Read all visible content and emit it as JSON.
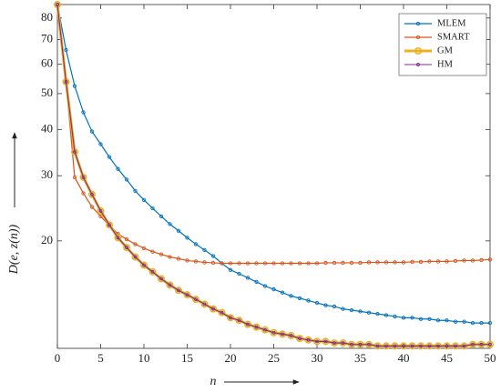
{
  "chart_data": {
    "type": "line",
    "xlabel": "n",
    "ylabel": "D(e, z(n))",
    "x": [
      0,
      1,
      2,
      3,
      4,
      5,
      6,
      7,
      8,
      9,
      10,
      11,
      12,
      13,
      14,
      15,
      16,
      17,
      18,
      19,
      20,
      21,
      22,
      23,
      24,
      25,
      26,
      27,
      28,
      29,
      30,
      31,
      32,
      33,
      34,
      35,
      36,
      37,
      38,
      39,
      40,
      41,
      42,
      43,
      44,
      45,
      46,
      47,
      48,
      49,
      50
    ],
    "series": [
      {
        "name": "MLEM",
        "color": "#0072bd",
        "values": [
          87,
          65.6,
          52.4,
          44.5,
          39.5,
          36.5,
          33.7,
          31.3,
          29.3,
          27.3,
          25.8,
          24.5,
          23.3,
          22.2,
          21.3,
          20.4,
          19.6,
          18.9,
          18.2,
          17.4,
          16.7,
          16.3,
          15.9,
          15.5,
          15.1,
          14.8,
          14.5,
          14.2,
          14.0,
          13.8,
          13.6,
          13.4,
          13.3,
          13.1,
          13.0,
          12.9,
          12.8,
          12.7,
          12.6,
          12.5,
          12.4,
          12.4,
          12.3,
          12.3,
          12.2,
          12.2,
          12.1,
          12.1,
          12.0,
          12.0,
          12.0
        ]
      },
      {
        "name": "SMART",
        "color": "#d95319",
        "values": [
          87,
          53.8,
          29.7,
          26.9,
          24.7,
          23.3,
          22.0,
          20.9,
          20.2,
          19.6,
          19.1,
          18.7,
          18.4,
          18.1,
          17.9,
          17.7,
          17.6,
          17.5,
          17.45,
          17.4,
          17.4,
          17.4,
          17.4,
          17.4,
          17.4,
          17.4,
          17.4,
          17.4,
          17.4,
          17.4,
          17.4,
          17.45,
          17.45,
          17.45,
          17.45,
          17.45,
          17.5,
          17.5,
          17.5,
          17.5,
          17.5,
          17.55,
          17.55,
          17.6,
          17.6,
          17.6,
          17.65,
          17.7,
          17.7,
          17.75,
          17.8
        ]
      },
      {
        "name": "GM",
        "color": "#edb120",
        "values": [
          87,
          53.8,
          34.8,
          29.7,
          26.7,
          24.1,
          22.1,
          20.4,
          19.2,
          18.1,
          17.2,
          16.5,
          15.8,
          15.2,
          14.7,
          14.3,
          13.9,
          13.5,
          13.1,
          12.8,
          12.4,
          12.2,
          11.9,
          11.7,
          11.5,
          11.3,
          11.2,
          11.1,
          10.9,
          10.8,
          10.7,
          10.7,
          10.6,
          10.6,
          10.5,
          10.5,
          10.5,
          10.4,
          10.4,
          10.4,
          10.4,
          10.4,
          10.4,
          10.4,
          10.4,
          10.4,
          10.4,
          10.4,
          10.5,
          10.5,
          10.5
        ]
      },
      {
        "name": "HM",
        "color": "#7e2f8e",
        "values": [
          87,
          53.8,
          34.8,
          29.7,
          26.7,
          24.1,
          22.1,
          20.4,
          19.2,
          18.1,
          17.2,
          16.5,
          15.8,
          15.2,
          14.7,
          14.3,
          13.9,
          13.5,
          13.1,
          12.8,
          12.4,
          12.2,
          11.9,
          11.7,
          11.5,
          11.3,
          11.2,
          11.1,
          10.9,
          10.8,
          10.7,
          10.7,
          10.6,
          10.6,
          10.5,
          10.5,
          10.5,
          10.4,
          10.4,
          10.4,
          10.4,
          10.4,
          10.4,
          10.4,
          10.4,
          10.4,
          10.4,
          10.4,
          10.5,
          10.5,
          10.5
        ]
      }
    ],
    "xlim": [
      0,
      50
    ],
    "xticks": [
      0,
      5,
      10,
      15,
      20,
      25,
      30,
      35,
      40,
      45,
      50
    ],
    "ylim": [
      10.25,
      87
    ],
    "yticks": [
      20,
      30,
      40,
      50,
      60,
      70,
      80
    ],
    "yscale": "log",
    "legend": "upper right"
  }
}
